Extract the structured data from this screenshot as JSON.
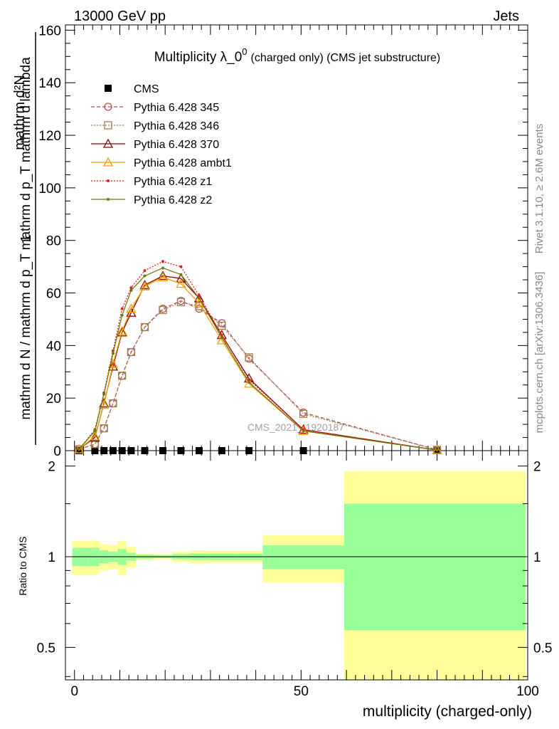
{
  "header": {
    "left": "13000 GeV pp",
    "right": "Jets"
  },
  "side": {
    "version": "Rivet 3.1.10, ≥ 2.6M events",
    "url": "mcplots.cern.ch [arXiv:1306.3436]"
  },
  "watermark": "CMS_2021_I1920187",
  "chart_data": [
    {
      "type": "line",
      "title_main": "Multiplicity λ_0",
      "title_sup": "0",
      "title_rest": "(charged only) (CMS jet substructure)",
      "ylabel_num": "mathrm d²N",
      "ylabel_den": "mathrm d N / mathrm d p_T mathrm d p_T mathrm d lambda",
      "ylabel_one": "1",
      "xlim": [
        -2,
        100
      ],
      "ylim": [
        0,
        162
      ],
      "yticks": [
        0,
        20,
        40,
        60,
        80,
        100,
        120,
        140,
        160
      ],
      "xticks": [
        0,
        50,
        100
      ],
      "series": [
        {
          "name": "CMS",
          "color": "#000000",
          "style": "points",
          "marker": "filled-square",
          "x": [
            1,
            4.5,
            6.5,
            8.5,
            10.5,
            12.5,
            15.5,
            19.5,
            23.5,
            27.5,
            32.5,
            38.5,
            50.5,
            80
          ],
          "y": [
            0,
            0,
            0,
            0,
            0,
            0,
            0,
            0,
            0,
            0,
            0,
            0,
            0,
            0
          ]
        },
        {
          "name": "Pythia 6.428 345",
          "color": "#b45050",
          "style": "dashed",
          "marker": "open-circle",
          "x": [
            1,
            4.5,
            6.5,
            8.5,
            10.5,
            12.5,
            15.5,
            19.5,
            23.5,
            27.5,
            32.5,
            38.5,
            50.5,
            80
          ],
          "y": [
            0.5,
            2.5,
            8.5,
            18,
            28.5,
            37.5,
            47,
            54,
            57,
            54,
            48.5,
            35,
            14.5,
            0.3
          ]
        },
        {
          "name": "Pythia 6.428 346",
          "color": "#a08050",
          "style": "dotted",
          "marker": "open-square",
          "x": [
            1,
            4.5,
            6.5,
            8.5,
            10.5,
            12.5,
            15.5,
            19.5,
            23.5,
            27.5,
            32.5,
            38.5,
            50.5,
            80
          ],
          "y": [
            0.5,
            2.5,
            8.5,
            18,
            28.5,
            37.5,
            47,
            53.5,
            56.5,
            55,
            47.5,
            35.5,
            14,
            0.3
          ]
        },
        {
          "name": "Pythia 6.428 370",
          "color": "#8b0000",
          "style": "solid",
          "marker": "open-triangle",
          "x": [
            1,
            4.5,
            6.5,
            8.5,
            10.5,
            12.5,
            15.5,
            19.5,
            23.5,
            27.5,
            32.5,
            38.5,
            50.5,
            80
          ],
          "y": [
            0.5,
            5,
            18,
            32,
            45,
            52.5,
            63,
            66.5,
            65.5,
            58,
            44,
            27.5,
            8,
            0.2
          ]
        },
        {
          "name": "Pythia 6.428 ambt1",
          "color": "#f0a000",
          "style": "solid",
          "marker": "open-triangle",
          "x": [
            1,
            4.5,
            6.5,
            8.5,
            10.5,
            12.5,
            15.5,
            19.5,
            23.5,
            27.5,
            32.5,
            38.5,
            50.5,
            80
          ],
          "y": [
            0.5,
            5.5,
            17.5,
            33,
            45.5,
            54,
            62.5,
            66,
            63.5,
            56,
            42,
            25.5,
            7.5,
            0.2
          ]
        },
        {
          "name": "Pythia 6.428 z1",
          "color": "#dd2020",
          "style": "dotted",
          "marker": "small-dot",
          "x": [
            1,
            4.5,
            6.5,
            8.5,
            10.5,
            12.5,
            15.5,
            19.5,
            23.5,
            27.5,
            32.5,
            38.5,
            50.5,
            80
          ],
          "y": [
            0.5,
            8,
            22,
            38,
            54,
            62,
            68.5,
            72,
            70,
            59,
            44,
            27,
            8,
            0.2
          ]
        },
        {
          "name": "Pythia 6.428 z2",
          "color": "#6b7a10",
          "style": "solid",
          "marker": "small-dot",
          "x": [
            1,
            4.5,
            6.5,
            8.5,
            10.5,
            12.5,
            15.5,
            19.5,
            23.5,
            27.5,
            32.5,
            38.5,
            50.5,
            80
          ],
          "y": [
            0.5,
            7.5,
            21.5,
            37,
            51.5,
            61,
            66.5,
            69.5,
            67,
            58,
            43,
            26,
            7.5,
            0.2
          ]
        }
      ]
    },
    {
      "type": "area",
      "ylabel": "Ratio to CMS",
      "xlabel": "multiplicity (charged-only)",
      "xlim": [
        -2,
        100
      ],
      "ylim": [
        0.39,
        2.25
      ],
      "scale": "log",
      "yticks": [
        0.5,
        1,
        2
      ],
      "xticks": [
        0,
        50,
        100
      ],
      "band_stat_color": "#99ff99",
      "band_total_color": "#ffff99",
      "bins": [
        {
          "x0": -0.5,
          "x1": 3,
          "stat": [
            0.93,
            1.07
          ],
          "total": [
            0.87,
            1.13
          ]
        },
        {
          "x0": 3,
          "x1": 5.5,
          "stat": [
            0.93,
            1.07
          ],
          "total": [
            0.87,
            1.13
          ]
        },
        {
          "x0": 5.5,
          "x1": 7.5,
          "stat": [
            0.95,
            1.05
          ],
          "total": [
            0.9,
            1.1
          ]
        },
        {
          "x0": 7.5,
          "x1": 9.5,
          "stat": [
            0.96,
            1.04
          ],
          "total": [
            0.91,
            1.09
          ]
        },
        {
          "x0": 9.5,
          "x1": 11.5,
          "stat": [
            0.94,
            1.06
          ],
          "total": [
            0.87,
            1.13
          ]
        },
        {
          "x0": 11.5,
          "x1": 13.5,
          "stat": [
            0.97,
            1.03
          ],
          "total": [
            0.92,
            1.08
          ]
        },
        {
          "x0": 13.5,
          "x1": 17.5,
          "stat": [
            0.985,
            1.015
          ],
          "total": [
            0.975,
            1.025
          ]
        },
        {
          "x0": 17.5,
          "x1": 21.5,
          "stat": [
            0.99,
            1.01
          ],
          "total": [
            0.98,
            1.02
          ]
        },
        {
          "x0": 21.5,
          "x1": 25.5,
          "stat": [
            0.98,
            1.02
          ],
          "total": [
            0.96,
            1.04
          ]
        },
        {
          "x0": 25.5,
          "x1": 29.5,
          "stat": [
            0.975,
            1.025
          ],
          "total": [
            0.95,
            1.05
          ]
        },
        {
          "x0": 29.5,
          "x1": 35.5,
          "stat": [
            0.975,
            1.025
          ],
          "total": [
            0.955,
            1.045
          ]
        },
        {
          "x0": 35.5,
          "x1": 41.5,
          "stat": [
            0.975,
            1.025
          ],
          "total": [
            0.955,
            1.045
          ]
        },
        {
          "x0": 41.5,
          "x1": 59.5,
          "stat": [
            0.91,
            1.09
          ],
          "total": [
            0.82,
            1.18
          ]
        },
        {
          "x0": 59.5,
          "x1": 99.5,
          "stat": [
            0.57,
            1.5
          ],
          "total": [
            0.39,
            1.92
          ]
        }
      ]
    }
  ]
}
